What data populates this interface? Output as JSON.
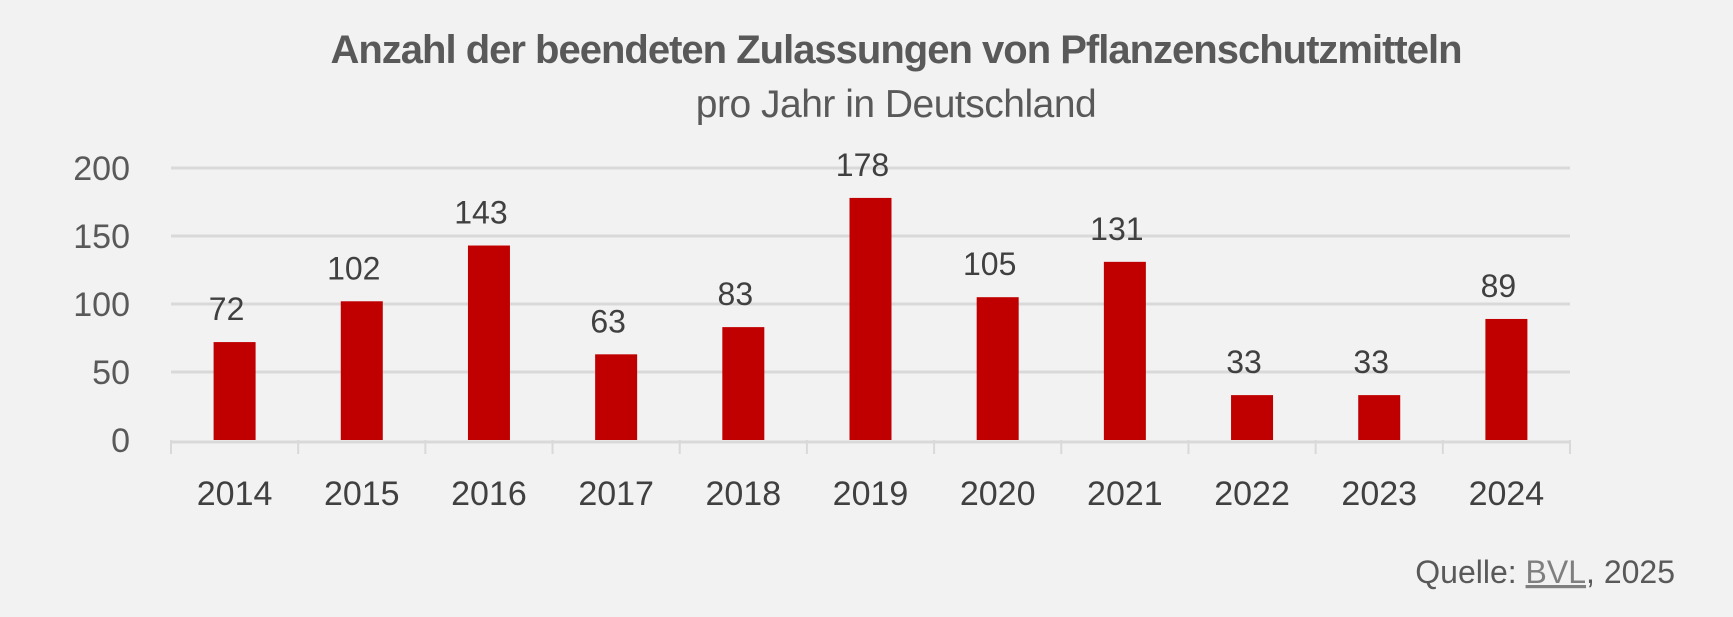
{
  "chart_data": {
    "type": "bar",
    "title": "Anzahl der beendeten Zulassungen von Pflanzenschutzmitteln",
    "subtitle": "pro Jahr in Deutschland",
    "xlabel": "",
    "ylabel": "",
    "categories": [
      "2014",
      "2015",
      "2016",
      "2017",
      "2018",
      "2019",
      "2020",
      "2021",
      "2022",
      "2023",
      "2024"
    ],
    "values": [
      72,
      102,
      143,
      63,
      83,
      178,
      105,
      131,
      33,
      33,
      89
    ],
    "ylim": [
      0,
      200
    ],
    "yticks": [
      "0",
      "50",
      "100",
      "150",
      "200"
    ],
    "grid": true,
    "legend": "none",
    "bar_color": "#c00000",
    "data_labels": [
      "72",
      "102",
      "143",
      "63",
      "83",
      "178",
      "105",
      "131",
      "33",
      "33",
      "89"
    ]
  },
  "source": {
    "prefix": "Quelle: ",
    "link": "BVL",
    "suffix": ", 2025"
  }
}
